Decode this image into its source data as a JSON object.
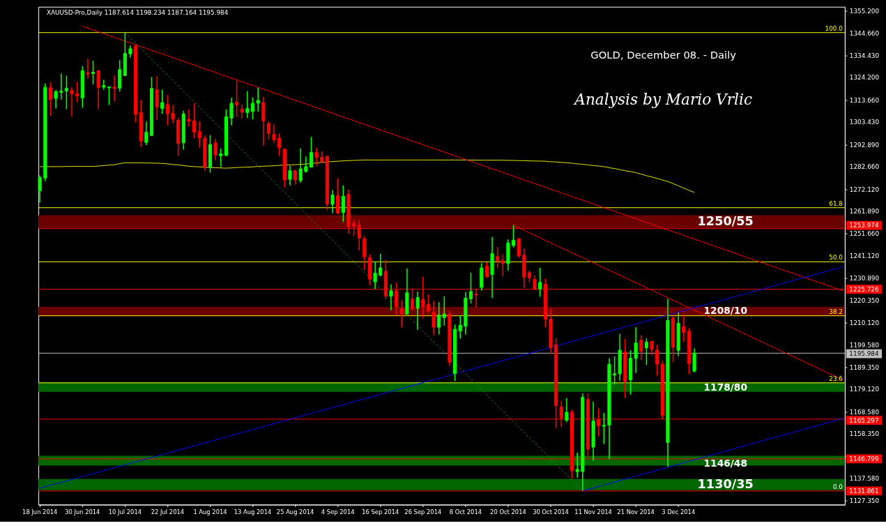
{
  "chart_data": {
    "type": "candlestick",
    "title": "GOLD, December 08. - Daily",
    "subtitle": "Analysis by Mario Vrlic",
    "annotations": [
      "XAUUSD-Pro,Daily 1187.614 1198.234 1187.164 1195.984",
      {
        "text": "100.0",
        "y": 1345.2
      },
      {
        "text": "61.8",
        "y": 1263.7
      },
      {
        "text": "50.0",
        "y": 1238.5
      },
      {
        "text": "38.2",
        "y": 1213.4
      },
      {
        "text": "23.6",
        "y": 1182.2
      },
      {
        "text": "0.0",
        "y": 1131.9
      }
    ],
    "categories": [
      "18 Jun 2014",
      null,
      null,
      null,
      null,
      null,
      null,
      null,
      "30 Jun 2014",
      null,
      null,
      null,
      null,
      null,
      null,
      null,
      "10 Jul 2014",
      null,
      null,
      null,
      null,
      null,
      null,
      null,
      "22 Jul 2014",
      null,
      null,
      null,
      null,
      null,
      null,
      null,
      "1 Aug 2014",
      null,
      null,
      null,
      null,
      null,
      null,
      null,
      "13 Aug 2014",
      null,
      null,
      null,
      null,
      null,
      null,
      null,
      "25 Aug 2014",
      null,
      null,
      null,
      null,
      null,
      null,
      null,
      "4 Sep 2014",
      null,
      null,
      null,
      null,
      null,
      null,
      null,
      "16 Sep 2014",
      null,
      null,
      null,
      null,
      null,
      null,
      null,
      "26 Sep 2014",
      null,
      null,
      null,
      null,
      null,
      null,
      null,
      "8 Oct 2014",
      null,
      null,
      null,
      null,
      null,
      null,
      null,
      "20 Oct 2014",
      null,
      null,
      null,
      null,
      null,
      null,
      null,
      "30 Oct 2014",
      null,
      null,
      null,
      null,
      null,
      null,
      null,
      "11 Nov 2014",
      null,
      null,
      null,
      null,
      null,
      null,
      null,
      "21 Nov 2014",
      null,
      null,
      null,
      null,
      null,
      null,
      null,
      "3 Dec 2014",
      null,
      null,
      null,
      null,
      null,
      null,
      null,
      null,
      null,
      null,
      null,
      null,
      null,
      null,
      null,
      null,
      null,
      null,
      null,
      null,
      null,
      null,
      null,
      null,
      null,
      null,
      null,
      null,
      null,
      null,
      null
    ],
    "ohlc": [
      [
        1271.6,
        1278.7,
        1266.1,
        1277.7
      ],
      [
        1277.5,
        1321.6,
        1276.0,
        1319.7
      ],
      [
        1319.5,
        1322.0,
        1306.4,
        1314.0
      ],
      [
        1314.6,
        1318.5,
        1309.9,
        1317.6
      ],
      [
        1317.4,
        1326.1,
        1314.0,
        1318.0
      ],
      [
        1318.0,
        1325.2,
        1309.5,
        1319.2
      ],
      [
        1318.3,
        1319.8,
        1306.1,
        1316.7
      ],
      [
        1316.7,
        1322.3,
        1312.7,
        1315.8
      ],
      [
        1314.8,
        1329.5,
        1310.2,
        1327.4
      ],
      [
        1326.4,
        1333.0,
        1323.7,
        1325.8
      ],
      [
        1326.1,
        1332.1,
        1321.1,
        1326.7
      ],
      [
        1327.4,
        1327.7,
        1309.6,
        1319.6
      ],
      [
        1319.8,
        1323.3,
        1318.6,
        1320.5
      ],
      [
        1319.5,
        1320.1,
        1311.5,
        1319.9
      ],
      [
        1319.8,
        1325.2,
        1313.3,
        1319.2
      ],
      [
        1319.3,
        1332.4,
        1317.7,
        1328.0
      ],
      [
        1325.2,
        1345.2,
        1325.0,
        1335.5
      ],
      [
        1335.3,
        1339.2,
        1333.6,
        1337.7
      ],
      [
        1339.0,
        1339.6,
        1303.3,
        1307.1
      ],
      [
        1307.9,
        1313.9,
        1292.0,
        1294.7
      ],
      [
        1294.1,
        1303.8,
        1292.8,
        1298.8
      ],
      [
        1297.3,
        1324.5,
        1297.0,
        1319.2
      ],
      [
        1318.6,
        1324.9,
        1304.5,
        1310.5
      ],
      [
        1309.9,
        1318.6,
        1307.4,
        1312.6
      ],
      [
        1311.7,
        1316.1,
        1302.0,
        1307.4
      ],
      [
        1307.6,
        1311.4,
        1303.0,
        1304.9
      ],
      [
        1304.4,
        1305.5,
        1287.6,
        1293.6
      ],
      [
        1293.9,
        1308.8,
        1290.7,
        1307.3
      ],
      [
        1304.8,
        1309.5,
        1301.4,
        1303.9
      ],
      [
        1304.1,
        1312.3,
        1296.1,
        1298.9
      ],
      [
        1299.1,
        1303.8,
        1291.7,
        1296.1
      ],
      [
        1296.0,
        1297.5,
        1280.8,
        1282.7
      ],
      [
        1282.5,
        1297.5,
        1280.0,
        1293.1
      ],
      [
        1293.8,
        1295.7,
        1285.9,
        1288.2
      ],
      [
        1287.9,
        1291.2,
        1282.6,
        1288.8
      ],
      [
        1288.1,
        1309.5,
        1287.6,
        1306.0
      ],
      [
        1305.4,
        1314.8,
        1302.0,
        1312.3
      ],
      [
        1312.8,
        1322.9,
        1305.8,
        1311.5
      ],
      [
        1309.5,
        1311.6,
        1305.2,
        1308.2
      ],
      [
        1308.0,
        1318.0,
        1305.5,
        1309.8
      ],
      [
        1308.5,
        1315.1,
        1304.8,
        1312.3
      ],
      [
        1312.4,
        1319.5,
        1308.5,
        1313.6
      ],
      [
        1312.6,
        1315.3,
        1292.6,
        1304.1
      ],
      [
        1302.9,
        1303.8,
        1295.4,
        1298.3
      ],
      [
        1297.9,
        1302.6,
        1293.9,
        1295.3
      ],
      [
        1296.0,
        1298.2,
        1287.9,
        1291.6
      ],
      [
        1290.9,
        1291.3,
        1273.1,
        1276.6
      ],
      [
        1276.9,
        1283.1,
        1274.1,
        1280.9
      ],
      [
        1280.9,
        1281.4,
        1274.4,
        1276.6
      ],
      [
        1276.3,
        1291.3,
        1275.3,
        1281.8
      ],
      [
        1280.6,
        1287.5,
        1280.0,
        1282.8
      ],
      [
        1282.6,
        1296.6,
        1282.3,
        1289.4
      ],
      [
        1289.4,
        1291.6,
        1283.2,
        1287.2
      ],
      [
        1287.2,
        1290.0,
        1284.4,
        1285.0
      ],
      [
        1287.6,
        1287.8,
        1262.6,
        1265.3
      ],
      [
        1265.3,
        1271.8,
        1261.2,
        1269.6
      ],
      [
        1269.3,
        1277.4,
        1260.7,
        1261.2
      ],
      [
        1261.5,
        1274.1,
        1257.1,
        1269.0
      ],
      [
        1269.9,
        1272.1,
        1251.5,
        1254.9
      ],
      [
        1256.5,
        1258.3,
        1250.4,
        1255.1
      ],
      [
        1255.5,
        1258.0,
        1243.8,
        1249.6
      ],
      [
        1249.2,
        1250.4,
        1234.7,
        1240.8
      ],
      [
        1240.4,
        1242.0,
        1227.6,
        1230.4
      ],
      [
        1229.2,
        1238.7,
        1225.9,
        1233.2
      ],
      [
        1232.3,
        1242.3,
        1231.7,
        1235.7
      ],
      [
        1234.1,
        1239.4,
        1221.2,
        1222.6
      ],
      [
        1222.5,
        1228.1,
        1215.9,
        1225.0
      ],
      [
        1225.0,
        1228.8,
        1213.8,
        1217.6
      ],
      [
        1216.5,
        1220.6,
        1208.0,
        1214.3
      ],
      [
        1214.1,
        1235.4,
        1213.8,
        1224.1
      ],
      [
        1221.2,
        1226.3,
        1215.7,
        1216.6
      ],
      [
        1216.9,
        1224.7,
        1206.8,
        1221.9
      ],
      [
        1220.9,
        1231.6,
        1212.2,
        1217.6
      ],
      [
        1218.7,
        1223.4,
        1214.7,
        1215.7
      ],
      [
        1215.0,
        1220.3,
        1204.4,
        1208.1
      ],
      [
        1208.1,
        1219.7,
        1204.7,
        1213.7
      ],
      [
        1212.5,
        1222.5,
        1208.8,
        1214.3
      ],
      [
        1214.0,
        1215.6,
        1189.9,
        1191.8
      ],
      [
        1186.5,
        1209.3,
        1183.0,
        1207.1
      ],
      [
        1206.3,
        1213.7,
        1202.8,
        1209.0
      ],
      [
        1208.5,
        1224.4,
        1204.7,
        1221.6
      ],
      [
        1221.3,
        1233.5,
        1219.1,
        1224.7
      ],
      [
        1223.5,
        1225.9,
        1217.3,
        1223.1
      ],
      [
        1226.6,
        1237.9,
        1225.1,
        1235.7
      ],
      [
        1236.6,
        1238.3,
        1231.1,
        1231.6
      ],
      [
        1232.6,
        1250.1,
        1221.7,
        1242.3
      ],
      [
        1241.0,
        1245.4,
        1235.5,
        1238.8
      ],
      [
        1239.1,
        1242.0,
        1231.7,
        1237.7
      ],
      [
        1237.7,
        1248.9,
        1234.5,
        1247.3
      ],
      [
        1246.1,
        1255.5,
        1245.2,
        1248.6
      ],
      [
        1249.2,
        1249.7,
        1240.5,
        1241.3
      ],
      [
        1241.6,
        1244.8,
        1226.4,
        1231.3
      ],
      [
        1233.5,
        1234.4,
        1228.9,
        1231.1
      ],
      [
        1230.4,
        1232.2,
        1225.3,
        1225.7
      ],
      [
        1225.9,
        1235.7,
        1222.3,
        1228.9
      ],
      [
        1228.1,
        1230.7,
        1208.1,
        1211.8
      ],
      [
        1211.8,
        1216.9,
        1195.8,
        1198.6
      ],
      [
        1199.9,
        1203.0,
        1161.0,
        1171.6
      ],
      [
        1171.0,
        1173.8,
        1161.6,
        1165.8
      ],
      [
        1164.8,
        1175.1,
        1163.9,
        1168.5
      ],
      [
        1168.5,
        1169.7,
        1137.8,
        1141.3
      ],
      [
        1140.9,
        1149.7,
        1138.1,
        1141.9
      ],
      [
        1140.9,
        1177.3,
        1131.9,
        1175.4
      ],
      [
        1174.5,
        1177.3,
        1147.2,
        1151.3
      ],
      [
        1152.3,
        1173.5,
        1146.0,
        1164.4
      ],
      [
        1165.0,
        1170.4,
        1157.3,
        1162.2
      ],
      [
        1162.0,
        1168.2,
        1153.7,
        1162.4
      ],
      [
        1162.5,
        1193.6,
        1146.8,
        1190.8
      ],
      [
        1185.8,
        1194.5,
        1181.4,
        1186.4
      ],
      [
        1186.4,
        1204.9,
        1183.2,
        1197.4
      ],
      [
        1196.5,
        1202.5,
        1175.2,
        1182.9
      ],
      [
        1183.6,
        1197.3,
        1176.7,
        1193.6
      ],
      [
        1193.6,
        1208.0,
        1186.8,
        1200.7
      ],
      [
        1202.1,
        1204.3,
        1192.8,
        1196.8
      ],
      [
        1198.4,
        1203.0,
        1190.5,
        1201.1
      ],
      [
        1201.5,
        1201.8,
        1195.0,
        1197.8
      ],
      [
        1197.4,
        1199.9,
        1185.5,
        1190.9
      ],
      [
        1190.8,
        1192.3,
        1165.3,
        1167.0
      ],
      [
        1154.4,
        1221.3,
        1143.1,
        1211.2
      ],
      [
        1212.4,
        1213.4,
        1191.8,
        1198.7
      ],
      [
        1197.2,
        1215.0,
        1194.6,
        1209.9
      ],
      [
        1208.4,
        1213.7,
        1201.2,
        1205.6
      ],
      [
        1206.2,
        1207.7,
        1186.2,
        1191.2
      ],
      [
        1187.614,
        1198.234,
        1187.164,
        1195.984
      ],
      null,
      null,
      null,
      null,
      null,
      null,
      null,
      null,
      null,
      null,
      null,
      null,
      null,
      null,
      null,
      null,
      null,
      null,
      null,
      null,
      null,
      null,
      null,
      null,
      null,
      null,
      null,
      null
    ],
    "colors": [
      "#00ff00",
      "#00ff00",
      "#ff0000",
      "#00ff00",
      "#00ff00",
      "#00ff00",
      "#ff0000",
      "#ff0000",
      "#00ff00",
      "#ff0000",
      "#00ff00",
      "#ff0000",
      "#00ff00",
      "#00ff00",
      "#ff0000",
      "#00ff00",
      "#00ff00",
      "#00ff00",
      "#ff0000",
      "#ff0000",
      "#00ff00",
      "#00ff00",
      "#ff0000",
      "#00ff00",
      "#ff0000",
      "#ff0000",
      "#ff0000",
      "#00ff00",
      "#ff0000",
      "#ff0000",
      "#ff0000",
      "#ff0000",
      "#00ff00",
      "#ff0000",
      "#00ff00",
      "#00ff00",
      "#00ff00",
      "#ff0000",
      "#ff0000",
      "#00ff00",
      "#00ff00",
      "#00ff00",
      "#ff0000",
      "#ff0000",
      "#ff0000",
      "#ff0000",
      "#ff0000",
      "#00ff00",
      "#ff0000",
      "#00ff00",
      "#00ff00",
      "#00ff00",
      "#ff0000",
      "#ff0000",
      "#ff0000",
      "#00ff00",
      "#ff0000",
      "#00ff00",
      "#ff0000",
      "#ff0000",
      "#ff0000",
      "#ff0000",
      "#ff0000",
      "#00ff00",
      "#00ff00",
      "#ff0000",
      "#00ff00",
      "#ff0000",
      "#ff0000",
      "#00ff00",
      "#ff0000",
      "#00ff00",
      "#ff0000",
      "#ff0000",
      "#ff0000",
      "#00ff00",
      "#00ff00",
      "#ff0000",
      "#00ff00",
      "#00ff00",
      "#00ff00",
      "#00ff00",
      "#ff0000",
      "#00ff00",
      "#ff0000",
      "#00ff00",
      "#ff0000",
      "#ff0000",
      "#00ff00",
      "#00ff00",
      "#ff0000",
      "#ff0000",
      "#ff0000",
      "#ff0000",
      "#00ff00",
      "#ff0000",
      "#ff0000",
      "#ff0000",
      "#ff0000",
      "#00ff00",
      "#ff0000",
      "#00ff00",
      "#00ff00",
      "#ff0000",
      "#00ff00",
      "#ff0000",
      "#00ff00",
      "#00ff00",
      "#00ff00",
      "#00ff00",
      "#ff0000",
      "#00ff00",
      "#00ff00",
      "#ff0000",
      "#00ff00",
      "#ff0000",
      "#ff0000",
      "#ff0000",
      "#00ff00",
      "#ff0000",
      "#00ff00",
      "#ff0000",
      "#ff0000",
      "#00ff00",
      null,
      null,
      null,
      null,
      null,
      null,
      null,
      null,
      null,
      null,
      null,
      null,
      null,
      null,
      null,
      null,
      null,
      null,
      null,
      null,
      null,
      null,
      null,
      null,
      null,
      null,
      null,
      null
    ],
    "series": [
      {
        "type": "line",
        "color": "#e6e600",
        "values": [
          1282.8,
          1282.8,
          1282.8,
          1282.8,
          1282.8,
          1282.9,
          1282.9,
          1282.9,
          1282.9,
          1282.9,
          1282.9,
          1283.1,
          1283.3,
          1283.5,
          1283.7,
          1284.2,
          1284.6,
          1284.6,
          1284.6,
          1284.6,
          1284.5,
          1284.5,
          1284.4,
          1284.3,
          1284.1,
          1283.8,
          1283.6,
          1283.3,
          1283.0,
          1282.8,
          1282.7,
          1282.5,
          1282.4,
          1282.3,
          1282.2,
          1282.1,
          1282.2,
          1282.4,
          1282.5,
          1282.6,
          1282.7,
          1282.9,
          1283.0,
          1283.1,
          1283.2,
          1283.4,
          1283.5,
          1283.6,
          1283.7,
          1283.9,
          1284.0,
          1284.3,
          1284.5,
          1284.8,
          1285.0,
          1285.2,
          1285.3,
          1285.5,
          1285.6,
          1285.7,
          1285.8,
          1285.9,
          1285.9,
          1285.9,
          1285.9,
          1285.9,
          1285.9,
          1285.9,
          1285.9,
          1285.9,
          1285.9,
          1285.9,
          1285.9,
          1285.9,
          1285.9,
          1285.9,
          1285.9,
          1285.9,
          1285.9,
          1285.9,
          1285.9,
          1285.9,
          1285.8,
          1285.8,
          1285.8,
          1285.8,
          1285.8,
          1285.8,
          1285.7,
          1285.7,
          1285.6,
          1285.6,
          1285.5,
          1285.4,
          1285.4,
          1285.3,
          1285.1,
          1285.0,
          1284.8,
          1284.6,
          1284.4,
          1284.1,
          1283.9,
          1283.6,
          1283.3,
          1283.1,
          1282.8,
          1282.3,
          1281.9,
          1281.4,
          1280.9,
          1280.5,
          1280.0,
          1279.3,
          1278.6,
          1278.0,
          1277.3,
          1276.6,
          1275.9,
          1274.9,
          1273.9,
          1272.8,
          1271.8,
          1270.8,
          null,
          null,
          null,
          null,
          null,
          null,
          null,
          null,
          null,
          null,
          null,
          null,
          null,
          null,
          null,
          null,
          null,
          null,
          null,
          null,
          null,
          null,
          null,
          null,
          null,
          null,
          null,
          null
        ]
      },
      {
        "type": "line",
        "color": "#ff0000",
        "values": [
          null,
          null,
          null,
          null,
          null,
          null,
          null,
          null,
          1348.1,
          1347.3,
          1346.4,
          1345.6,
          1344.7,
          1343.8,
          1343.0,
          1342.1,
          1341.2,
          1340.4,
          1339.5,
          1338.7,
          1337.8,
          1336.9,
          1336.1,
          1335.2,
          1334.4,
          1333.5,
          1332.6,
          1331.8,
          1330.9,
          1330.1,
          1329.2,
          1328.3,
          1327.5,
          1326.6,
          1325.7,
          1324.9,
          1324.0,
          1323.2,
          1322.3,
          1321.4,
          1320.6,
          1319.7,
          1318.9,
          1318.0,
          1317.1,
          1316.3,
          1315.4,
          1314.5,
          1313.7,
          1312.8,
          1312.0,
          1311.1,
          1310.2,
          1309.4,
          1308.5,
          1307.7,
          1306.8,
          1305.9,
          1305.1,
          1304.2,
          1303.3,
          1302.5,
          1301.6,
          1300.8,
          1299.9,
          1299.0,
          1298.2,
          1297.3,
          1296.5,
          1295.6,
          1294.7,
          1293.9,
          1293.0,
          1292.1,
          1291.3,
          1290.4,
          1289.6,
          1288.7,
          1287.8,
          1287.0,
          1286.1,
          1285.3,
          1284.4,
          1283.5,
          1282.7,
          1281.8,
          1281.0,
          1280.1,
          1279.2,
          1278.4,
          1277.5,
          1276.6,
          1275.8,
          1274.9,
          1274.1,
          1273.2,
          1272.3,
          1271.5,
          1270.6,
          1269.8,
          1268.9,
          1268.0,
          1267.2,
          1266.3,
          1265.4,
          1264.6,
          1263.7,
          1262.9,
          1262.0,
          1261.1,
          1260.3,
          1259.4,
          1258.6,
          1257.7,
          1256.8,
          1256.0,
          1255.1,
          1254.2,
          1253.4,
          1252.5,
          1251.7,
          1250.8,
          1249.9,
          1249.1,
          1248.2,
          1247.4,
          1246.5,
          1245.6,
          1244.8,
          1243.9,
          1243.1,
          1242.2,
          1241.3,
          1240.5,
          1239.6,
          1238.7,
          1237.9,
          1237.0,
          1236.2,
          1235.3,
          1234.4,
          1233.6,
          1232.7,
          1231.9,
          1231.0,
          1230.1,
          1229.3,
          1228.4,
          1227.5,
          1226.7,
          1225.8,
          1225.0
        ]
      },
      {
        "type": "line",
        "color": "#ff0000",
        "values": [
          null,
          null,
          null,
          null,
          null,
          null,
          null,
          null,
          null,
          null,
          null,
          null,
          null,
          null,
          null,
          null,
          null,
          null,
          null,
          null,
          null,
          null,
          null,
          null,
          null,
          null,
          null,
          null,
          null,
          null,
          null,
          null,
          null,
          null,
          null,
          null,
          null,
          null,
          null,
          null,
          null,
          null,
          null,
          null,
          null,
          null,
          null,
          null,
          null,
          null,
          null,
          null,
          null,
          null,
          null,
          null,
          null,
          null,
          null,
          null,
          null,
          null,
          null,
          null,
          null,
          null,
          null,
          null,
          null,
          null,
          null,
          null,
          null,
          null,
          null,
          null,
          null,
          null,
          null,
          null,
          null,
          null,
          null,
          null,
          null,
          null,
          null,
          null,
          null,
          1255.5,
          1254.3,
          1253.2,
          1252.0,
          1250.9,
          1249.7,
          1248.5,
          1247.4,
          1246.2,
          1245.0,
          1243.9,
          1242.7,
          1241.6,
          1240.4,
          1239.2,
          1238.1,
          1236.9,
          1235.7,
          1234.6,
          1233.4,
          1232.3,
          1231.1,
          1229.9,
          1228.8,
          1227.6,
          1226.5,
          1225.3,
          1224.1,
          1223.0,
          1221.8,
          1220.6,
          1219.5,
          1218.3,
          1217.2,
          1216.0,
          1214.8,
          1213.7,
          1212.5,
          1211.3,
          1210.2,
          1209.0,
          1207.9,
          1206.7,
          1205.5,
          1204.4,
          1203.2,
          1202.1,
          1200.9,
          1199.7,
          1198.6,
          1197.4,
          1196.2,
          1195.1,
          1193.9,
          1192.8,
          1191.6,
          1190.4,
          1189.3,
          1188.1,
          1186.9,
          1185.8,
          1184.6,
          1183.5
        ]
      },
      {
        "type": "line",
        "color": "#0000ff",
        "values": [
          1133.1,
          1133.8,
          1134.5,
          1135.2,
          1135.8,
          1136.5,
          1137.2,
          1137.9,
          1138.6,
          1139.3,
          1139.9,
          1140.6,
          1141.3,
          1142.0,
          1142.7,
          1143.4,
          1144.0,
          1144.7,
          1145.4,
          1146.1,
          1146.8,
          1147.5,
          1148.1,
          1148.8,
          1149.5,
          1150.2,
          1150.9,
          1151.5,
          1152.2,
          1152.9,
          1153.6,
          1154.3,
          1155.0,
          1155.6,
          1156.3,
          1157.0,
          1157.7,
          1158.4,
          1159.1,
          1159.7,
          1160.4,
          1161.1,
          1161.8,
          1162.5,
          1163.2,
          1163.8,
          1164.5,
          1165.2,
          1165.9,
          1166.6,
          1167.3,
          1167.9,
          1168.6,
          1169.3,
          1170.0,
          1170.7,
          1171.3,
          1172.0,
          1172.7,
          1173.4,
          1174.1,
          1174.8,
          1175.4,
          1176.1,
          1176.8,
          1177.5,
          1178.2,
          1178.9,
          1179.5,
          1180.2,
          1180.9,
          1181.6,
          1182.3,
          1183.0,
          1183.6,
          1184.3,
          1185.0,
          1185.7,
          1186.4,
          1187.1,
          1187.7,
          1188.4,
          1189.1,
          1189.8,
          1190.5,
          1191.2,
          1191.8,
          1192.5,
          1193.2,
          1193.9,
          1194.6,
          1195.2,
          1195.9,
          1196.6,
          1197.3,
          1198.0,
          1198.7,
          1199.3,
          1200.0,
          1200.7,
          1201.4,
          1202.1,
          1202.8,
          1203.4,
          1204.1,
          1204.8,
          1205.5,
          1206.2,
          1206.9,
          1207.5,
          1208.2,
          1208.9,
          1209.6,
          1210.3,
          1211.0,
          1211.6,
          1212.3,
          1213.0,
          1213.7,
          1214.4,
          1215.1,
          1215.7,
          1216.4,
          1217.1,
          1217.8,
          1218.5,
          1219.1,
          1219.8,
          1220.5,
          1221.2,
          1221.9,
          1222.6,
          1223.2,
          1223.9,
          1224.6,
          1225.3,
          1226.0,
          1226.7,
          1227.3,
          1228.0,
          1228.7,
          1229.4,
          1230.1,
          1230.8,
          1231.4,
          1232.1,
          1232.8,
          1233.5,
          1234.2,
          1234.9,
          1235.5,
          1236.2
        ]
      },
      {
        "type": "line",
        "color": "#0000ff",
        "values": [
          null,
          null,
          null,
          null,
          null,
          null,
          null,
          null,
          null,
          null,
          null,
          null,
          null,
          null,
          null,
          null,
          null,
          null,
          null,
          null,
          null,
          null,
          null,
          null,
          null,
          null,
          null,
          null,
          null,
          null,
          null,
          null,
          null,
          null,
          null,
          null,
          null,
          null,
          null,
          null,
          null,
          null,
          null,
          null,
          null,
          null,
          null,
          null,
          null,
          null,
          null,
          null,
          null,
          null,
          null,
          null,
          null,
          null,
          null,
          null,
          null,
          null,
          null,
          null,
          null,
          null,
          null,
          null,
          null,
          null,
          null,
          null,
          null,
          null,
          null,
          null,
          null,
          null,
          null,
          null,
          null,
          null,
          null,
          null,
          null,
          null,
          null,
          null,
          null,
          null,
          null,
          null,
          null,
          null,
          null,
          null,
          null,
          null,
          null,
          null,
          null,
          null,
          1131.9,
          1132.6,
          1133.2,
          1133.9,
          1134.6,
          1135.3,
          1136.0,
          1136.7,
          1137.4,
          1138.1,
          1138.8,
          1139.5,
          1140.1,
          1140.8,
          1141.5,
          1142.2,
          1142.9,
          1143.6,
          1144.3,
          1145.0,
          1145.7,
          1146.4,
          1147.1,
          1147.7,
          1148.4,
          1149.1,
          1149.8,
          1150.5,
          1151.2,
          1151.9,
          1152.6,
          1153.3,
          1154.0,
          1154.7,
          1155.3,
          1156.0,
          1156.7,
          1157.4,
          1158.1,
          1158.8,
          1159.5,
          1160.2,
          1160.9,
          1161.6,
          1162.3,
          1162.9,
          1163.6,
          1164.3,
          1165.0,
          1165.7
        ]
      },
      {
        "type": "line",
        "color": "#2e8b2e",
        "line_style": "dashed",
        "values": [
          null,
          null,
          null,
          null,
          null,
          null,
          null,
          null,
          null,
          null,
          null,
          null,
          null,
          null,
          null,
          null,
          1345.2,
          1342.7,
          1340.2,
          1337.8,
          1335.3,
          1332.8,
          1330.3,
          1327.8,
          1325.4,
          1322.9,
          1320.4,
          1317.9,
          1315.4,
          1313.0,
          1310.5,
          1308.0,
          1305.5,
          1303.0,
          1300.6,
          1298.1,
          1295.6,
          1293.1,
          1290.6,
          1288.2,
          1285.7,
          1283.2,
          1280.7,
          1278.2,
          1275.8,
          1273.3,
          1270.8,
          1268.3,
          1265.8,
          1263.4,
          1260.9,
          1258.4,
          1255.9,
          1253.4,
          1251.0,
          1248.5,
          1246.0,
          1243.5,
          1241.0,
          1238.5,
          1236.1,
          1233.6,
          1231.1,
          1228.6,
          1226.1,
          1223.7,
          1221.2,
          1218.7,
          1216.2,
          1213.7,
          1211.3,
          1208.8,
          1206.3,
          1203.8,
          1201.3,
          1198.9,
          1196.4,
          1193.9,
          1191.4,
          1188.9,
          1186.5,
          1184.0,
          1181.5,
          1179.0,
          1176.5,
          1174.1,
          1171.6,
          1169.1,
          1166.6,
          1164.1,
          1161.7,
          1159.2,
          1156.7,
          1154.2,
          1151.7,
          1149.3,
          1146.8,
          1144.3,
          1141.8,
          1139.3,
          1136.9,
          1134.4,
          1131.9,
          null,
          null,
          null,
          null,
          null,
          null,
          null,
          null,
          null,
          null,
          null,
          null,
          null,
          null,
          null,
          null,
          null,
          null,
          null,
          null,
          null,
          null,
          null,
          null,
          null,
          null,
          null,
          null,
          null,
          null,
          null,
          null,
          null,
          null,
          null,
          null,
          null,
          null,
          null,
          null,
          null,
          null,
          null,
          null,
          null,
          null,
          null,
          null,
          null
        ]
      }
    ],
    "ref_lines": [
      {
        "axis": "y",
        "value": 1345.2,
        "color": "#ffff00"
      },
      {
        "axis": "y",
        "value": 1263.7,
        "color": "#ffff00"
      },
      {
        "axis": "y",
        "value": 1238.5,
        "color": "#ffff00"
      },
      {
        "axis": "y",
        "value": 1213.4,
        "color": "#ffff00"
      },
      {
        "axis": "y",
        "value": 1182.2,
        "color": "#ffff00"
      },
      {
        "axis": "y",
        "value": 1253.974,
        "label": "1253.974",
        "color": "#ff0000"
      },
      {
        "axis": "y",
        "value": 1225.726,
        "label": "1225.726",
        "color": "#ff0000"
      },
      {
        "axis": "y",
        "value": 1195.984,
        "label": "1195.984",
        "color": "#c0c0c0"
      },
      {
        "axis": "y",
        "value": 1165.297,
        "label": "1165.297",
        "color": "#ff0000"
      },
      {
        "axis": "y",
        "value": 1146.799,
        "label": "1146.799",
        "color": "#ff0000"
      },
      {
        "axis": "y",
        "value": 1131.861,
        "label": "1131.861",
        "color": "#ff0000"
      }
    ],
    "bands": [
      {
        "axis": "y",
        "from": 1254.1,
        "to": 1260.2,
        "label": "1250/55",
        "color": "#6b0000"
      },
      {
        "axis": "y",
        "from": 1213.3,
        "to": 1217.5,
        "label": "1208/10",
        "color": "#6b0000"
      },
      {
        "axis": "y",
        "from": 1178.0,
        "to": 1182.3,
        "label": "1178/80",
        "color": "#006600"
      },
      {
        "axis": "y",
        "from": 1143.7,
        "to": 1148.2,
        "label": "1146/48",
        "color": "#006600"
      },
      {
        "axis": "y",
        "from": 1132.2,
        "to": 1137.4,
        "label": "1130/35",
        "color": "#006600"
      }
    ],
    "ylim": [
      1125.5,
      1357.2
    ],
    "yticks": [
      {
        "value": 1355.2,
        "label": "1355.200"
      },
      {
        "value": 1344.66,
        "label": "1344.660"
      },
      {
        "value": 1334.43,
        "label": "1334.430"
      },
      {
        "value": 1324.2,
        "label": "1324.200"
      },
      {
        "value": 1313.66,
        "label": "1313.660"
      },
      {
        "value": 1303.43,
        "label": "1303.430"
      },
      {
        "value": 1292.89,
        "label": "1292.890"
      },
      {
        "value": 1282.66,
        "label": "1282.660"
      },
      {
        "value": 1272.12,
        "label": "1272.120"
      },
      {
        "value": 1261.89,
        "label": "1261.890"
      },
      {
        "value": 1251.66,
        "label": "1251.660"
      },
      {
        "value": 1241.12,
        "label": "1241.120"
      },
      {
        "value": 1230.89,
        "label": "1230.890"
      },
      {
        "value": 1220.35,
        "label": "1220.350"
      },
      {
        "value": 1210.12,
        "label": "1210.120"
      },
      {
        "value": 1199.58,
        "label": "1199.580"
      },
      {
        "value": 1189.35,
        "label": "1189.350"
      },
      {
        "value": 1179.12,
        "label": "1179.120"
      },
      {
        "value": 1168.58,
        "label": "1168.580"
      },
      {
        "value": 1158.35,
        "label": "1158.350"
      },
      {
        "value": 1147.81,
        "label": null
      },
      {
        "value": 1137.58,
        "label": "1137.580"
      },
      {
        "value": 1127.35,
        "label": "1127.350"
      }
    ],
    "grid": false
  }
}
